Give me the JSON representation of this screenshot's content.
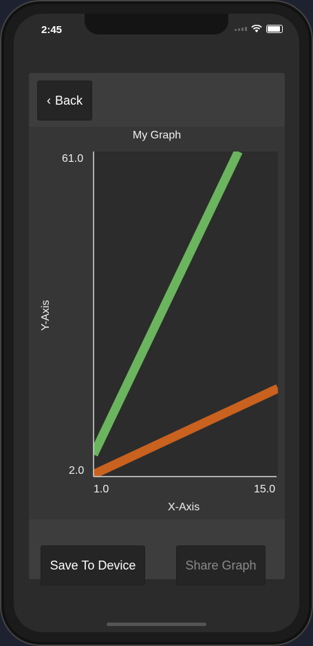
{
  "status_bar": {
    "time": "2:45"
  },
  "nav": {
    "back_label": "Back",
    "back_icon": "chevron-left-icon"
  },
  "chart_data": {
    "type": "line",
    "title": "My Graph",
    "xlabel": "X-Axis",
    "ylabel": "Y-Axis",
    "x_ticks": [
      "1.0",
      "15.0"
    ],
    "y_ticks": [
      "61.0",
      "2.0"
    ],
    "xlim": [
      1.0,
      15.0
    ],
    "ylim": [
      2.0,
      61.0
    ],
    "series": [
      {
        "color": "#6ab55e",
        "x": [
          1.0,
          12.0
        ],
        "y": [
          6.0,
          61.0
        ]
      },
      {
        "color": "#c9611f",
        "x": [
          1.0,
          15.0
        ],
        "y": [
          2.4,
          18.0
        ]
      }
    ],
    "grid": false
  },
  "buttons": {
    "save_label": "Save To Device",
    "share_label": "Share Graph"
  }
}
